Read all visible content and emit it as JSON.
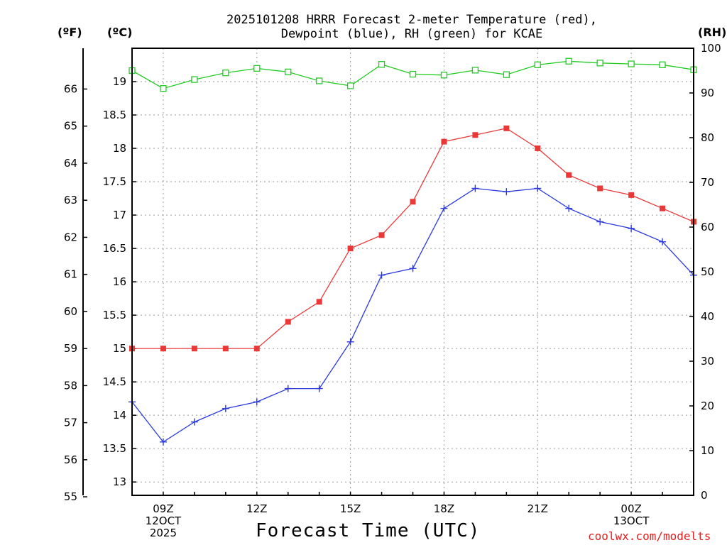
{
  "header": {
    "title_line1": "2025101208 HRRR Forecast 2-meter Temperature (red),",
    "title_line2": "Dewpoint (blue), RH (green) for KCAE",
    "unit_f": "(ºF)",
    "unit_c": "(ºC)",
    "unit_rh": "(RH)"
  },
  "footer": {
    "xlabel": "Forecast Time (UTC)",
    "credit": "coolwx.com/modelts"
  },
  "colors": {
    "temperature": "#e83838",
    "dewpoint": "#2a3ae0",
    "rh": "#22cc22",
    "grid": "#9a9a9a"
  },
  "chart_data": {
    "type": "line",
    "title": "2025101208 HRRR Forecast 2-meter Temperature (red), Dewpoint (blue), RH (green) for KCAE",
    "xlabel": "Forecast Time (UTC)",
    "ylabel_left_outer": "(ºF)",
    "ylabel_left_inner": "(ºC)",
    "ylabel_right": "(RH)",
    "x_hours": [
      8,
      9,
      10,
      11,
      12,
      13,
      14,
      15,
      16,
      17,
      18,
      19,
      20,
      21,
      22,
      23,
      24,
      25,
      26
    ],
    "xlim": [
      8,
      26
    ],
    "x_ticks": [
      {
        "hour": 9,
        "lines": [
          "09Z",
          "12OCT",
          "2025"
        ]
      },
      {
        "hour": 12,
        "lines": [
          "12Z"
        ]
      },
      {
        "hour": 15,
        "lines": [
          "15Z"
        ]
      },
      {
        "hour": 18,
        "lines": [
          "18Z"
        ]
      },
      {
        "hour": 21,
        "lines": [
          "21Z"
        ]
      },
      {
        "hour": 24,
        "lines": [
          "00Z",
          "13OCT"
        ]
      }
    ],
    "ylim_c": [
      12.8,
      19.5
    ],
    "c_ticks": [
      13,
      13.5,
      14,
      14.5,
      15,
      15.5,
      16,
      16.5,
      17,
      17.5,
      18,
      18.5,
      19
    ],
    "f_ticks": [
      55,
      56,
      57,
      58,
      59,
      60,
      61,
      62,
      63,
      64,
      65,
      66
    ],
    "ylim_rh": [
      0,
      100
    ],
    "rh_ticks": [
      0,
      10,
      20,
      30,
      40,
      50,
      60,
      70,
      80,
      90,
      100
    ],
    "series": [
      {
        "name": "Temperature",
        "unit": "C",
        "axis": "c",
        "marker": "square-filled",
        "color": "#e83838",
        "values": [
          15.0,
          15.0,
          15.0,
          15.0,
          15.0,
          15.4,
          15.7,
          16.5,
          16.7,
          17.2,
          18.1,
          18.2,
          18.3,
          18.0,
          17.6,
          17.4,
          17.3,
          17.1,
          16.9
        ]
      },
      {
        "name": "Dewpoint",
        "unit": "C",
        "axis": "c",
        "marker": "plus",
        "color": "#2a3ae0",
        "values": [
          14.2,
          13.6,
          13.9,
          14.1,
          14.2,
          14.4,
          14.4,
          15.1,
          16.1,
          16.2,
          17.1,
          17.4,
          17.35,
          17.4,
          17.1,
          16.9,
          16.8,
          16.6,
          16.1
        ]
      },
      {
        "name": "RH",
        "unit": "%",
        "axis": "rh",
        "marker": "square-open",
        "color": "#22cc22",
        "values": [
          95,
          91,
          93,
          94.5,
          95.5,
          94.7,
          92.7,
          91.6,
          96.4,
          94.2,
          94,
          95.1,
          94.1,
          96.3,
          97.1,
          96.7,
          96.5,
          96.3,
          95.2
        ]
      }
    ]
  }
}
